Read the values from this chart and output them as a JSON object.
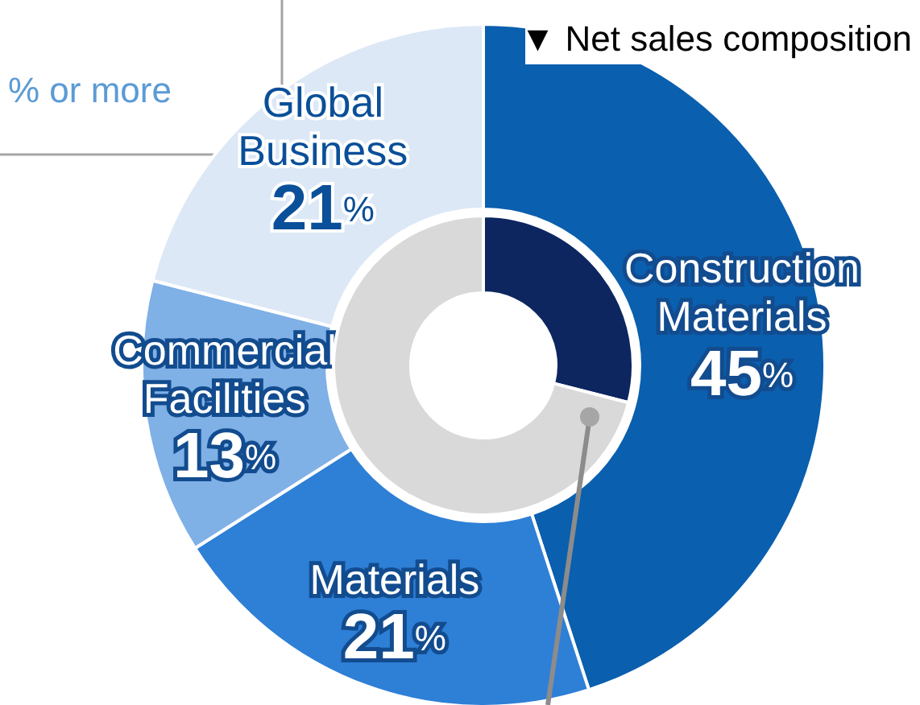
{
  "chart_data": [
    {
      "type": "donut",
      "title": "▼ Net sales composition",
      "categories": [
        "Construction Materials",
        "Materials",
        "Commercial Facilities",
        "Global Business"
      ],
      "values": [
        45,
        21,
        13,
        21
      ],
      "colors": [
        "#0a5fae",
        "#2e7fd6",
        "#7fb0e6",
        "#dce8f6"
      ],
      "value_labels": [
        "45%",
        "21%",
        "13%",
        "21%"
      ],
      "annotations": [
        "% or more"
      ]
    },
    {
      "type": "donut",
      "categories": [
        null,
        null
      ],
      "values": [
        29,
        71
      ],
      "colors": [
        "#0d2660",
        "#d9d9d9"
      ]
    }
  ]
}
